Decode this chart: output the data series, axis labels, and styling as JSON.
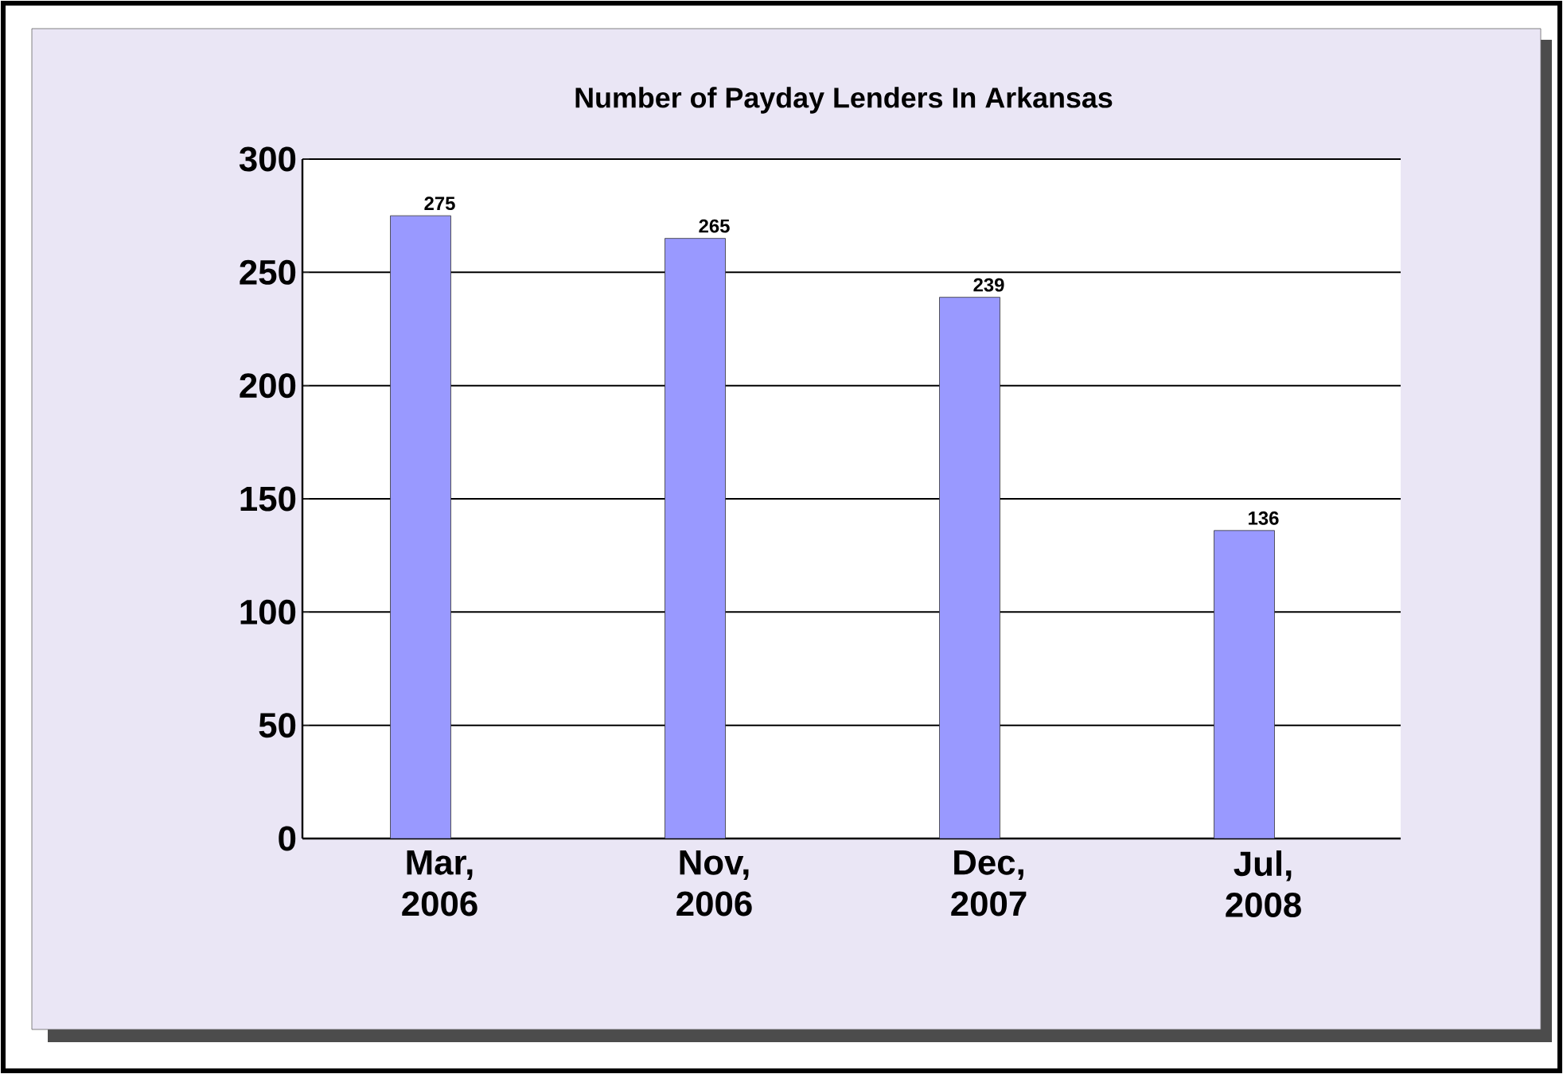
{
  "chart_data": {
    "type": "bar",
    "title": "Number of Payday Lenders In Arkansas",
    "categories": [
      "Mar, 2006",
      "Nov, 2006",
      "Dec, 2007",
      "Jul, 2008"
    ],
    "values": [
      275,
      265,
      239,
      136
    ],
    "color": "#9999ff",
    "data_labels": true,
    "ylim": [
      0,
      300
    ],
    "yticks": [
      0,
      50,
      100,
      150,
      200,
      250,
      300
    ],
    "grid": "y"
  }
}
